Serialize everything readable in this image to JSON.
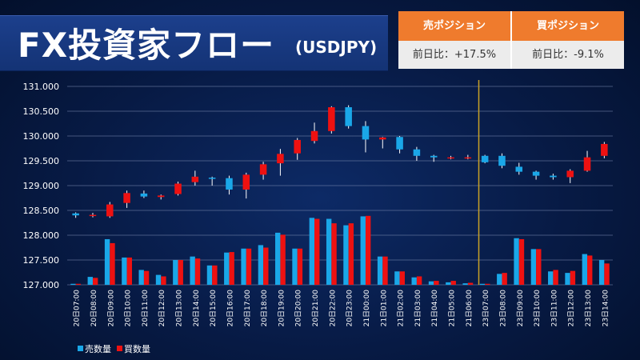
{
  "title": {
    "main": "FX投資家フロー",
    "sub": "(USDJPY)"
  },
  "position_table": {
    "sell_header": "売ポジション",
    "buy_header": "買ポジション",
    "sell_change": "前日比：+17.5%",
    "buy_change": "前日比：-9.1%"
  },
  "colors": {
    "sell": "#1aa7e8",
    "buy": "#ee1111",
    "candle_up": "#ee1111",
    "candle_down": "#1aa7e8",
    "separator": "#c9a227",
    "header": "#ef7b2d"
  },
  "chart_data": {
    "type": "candlestick+bar",
    "ylim": [
      127.0,
      131.0
    ],
    "y_ticks": [
      "131.000",
      "130.500",
      "130.000",
      "129.500",
      "129.000",
      "128.500",
      "128.000",
      "127.500",
      "127.000"
    ],
    "grid": true,
    "legend_position": "bottom-left",
    "separator_after_category": "21日06:00",
    "categories": [
      "20日07:00",
      "20日08:00",
      "20日09:00",
      "20日10:00",
      "20日11:00",
      "20日12:00",
      "20日13:00",
      "20日14:00",
      "20日15:00",
      "20日16:00",
      "20日17:00",
      "20日18:00",
      "20日19:00",
      "20日20:00",
      "20日21:00",
      "20日22:00",
      "20日23:00",
      "21日00:00",
      "21日01:00",
      "21日02:00",
      "21日03:00",
      "21日04:00",
      "21日05:00",
      "21日06:00",
      "23日07:00",
      "23日08:00",
      "23日09:00",
      "23日10:00",
      "23日11:00",
      "23日12:00",
      "23日13:00",
      "23日14:00"
    ],
    "candles": [
      {
        "o": 128.44,
        "h": 128.46,
        "l": 128.35,
        "c": 128.4
      },
      {
        "o": 128.39,
        "h": 128.45,
        "l": 128.36,
        "c": 128.41
      },
      {
        "o": 128.38,
        "h": 128.67,
        "l": 128.35,
        "c": 128.62
      },
      {
        "o": 128.65,
        "h": 128.9,
        "l": 128.55,
        "c": 128.85
      },
      {
        "o": 128.84,
        "h": 128.9,
        "l": 128.75,
        "c": 128.78
      },
      {
        "o": 128.77,
        "h": 128.82,
        "l": 128.72,
        "c": 128.8
      },
      {
        "o": 128.83,
        "h": 129.08,
        "l": 128.8,
        "c": 129.04
      },
      {
        "o": 129.07,
        "h": 129.3,
        "l": 129.0,
        "c": 129.18
      },
      {
        "o": 129.16,
        "h": 129.18,
        "l": 129.0,
        "c": 129.15
      },
      {
        "o": 129.15,
        "h": 129.2,
        "l": 128.82,
        "c": 128.92
      },
      {
        "o": 128.92,
        "h": 129.26,
        "l": 128.74,
        "c": 129.22
      },
      {
        "o": 129.22,
        "h": 129.48,
        "l": 129.12,
        "c": 129.43
      },
      {
        "o": 129.45,
        "h": 129.74,
        "l": 129.2,
        "c": 129.64
      },
      {
        "o": 129.65,
        "h": 129.96,
        "l": 129.52,
        "c": 129.92
      },
      {
        "o": 129.9,
        "h": 130.27,
        "l": 129.85,
        "c": 130.1
      },
      {
        "o": 130.1,
        "h": 130.6,
        "l": 130.05,
        "c": 130.58
      },
      {
        "o": 130.58,
        "h": 130.62,
        "l": 130.15,
        "c": 130.2
      },
      {
        "o": 130.2,
        "h": 130.3,
        "l": 129.67,
        "c": 129.93
      },
      {
        "o": 129.93,
        "h": 129.98,
        "l": 129.75,
        "c": 129.97
      },
      {
        "o": 129.98,
        "h": 130.0,
        "l": 129.65,
        "c": 129.73
      },
      {
        "o": 129.73,
        "h": 129.78,
        "l": 129.5,
        "c": 129.6
      },
      {
        "o": 129.6,
        "h": 129.62,
        "l": 129.48,
        "c": 129.57
      },
      {
        "o": 129.57,
        "h": 129.6,
        "l": 129.53,
        "c": 129.57
      },
      {
        "o": 129.57,
        "h": 129.62,
        "l": 129.53,
        "c": 129.57
      },
      {
        "o": 129.6,
        "h": 129.62,
        "l": 129.45,
        "c": 129.47
      },
      {
        "o": 129.6,
        "h": 129.65,
        "l": 129.35,
        "c": 129.4
      },
      {
        "o": 129.38,
        "h": 129.46,
        "l": 129.22,
        "c": 129.28
      },
      {
        "o": 129.28,
        "h": 129.3,
        "l": 129.12,
        "c": 129.2
      },
      {
        "o": 129.2,
        "h": 129.24,
        "l": 129.12,
        "c": 129.17
      },
      {
        "o": 129.17,
        "h": 129.33,
        "l": 129.05,
        "c": 129.3
      },
      {
        "o": 129.3,
        "h": 129.7,
        "l": 129.28,
        "c": 129.57
      },
      {
        "o": 129.6,
        "h": 129.88,
        "l": 129.55,
        "c": 129.84
      }
    ],
    "series": [
      {
        "name": "売数量",
        "values": [
          127.02,
          127.16,
          127.92,
          127.55,
          127.3,
          127.2,
          127.5,
          127.57,
          127.39,
          127.65,
          127.73,
          127.8,
          128.05,
          127.73,
          128.35,
          128.33,
          128.2,
          128.38,
          127.57,
          127.27,
          127.15,
          127.07,
          127.05,
          127.03,
          127.02,
          127.22,
          127.94,
          127.72,
          127.27,
          127.24,
          127.62,
          127.5
        ]
      },
      {
        "name": "買数量",
        "values": [
          127.02,
          127.14,
          127.84,
          127.55,
          127.28,
          127.17,
          127.5,
          127.53,
          127.39,
          127.66,
          127.73,
          127.75,
          128.01,
          127.73,
          128.33,
          128.24,
          128.24,
          128.39,
          127.57,
          127.27,
          127.17,
          127.08,
          127.08,
          127.04,
          127.02,
          127.24,
          127.92,
          127.72,
          127.3,
          127.28,
          127.59,
          127.43
        ]
      }
    ]
  }
}
